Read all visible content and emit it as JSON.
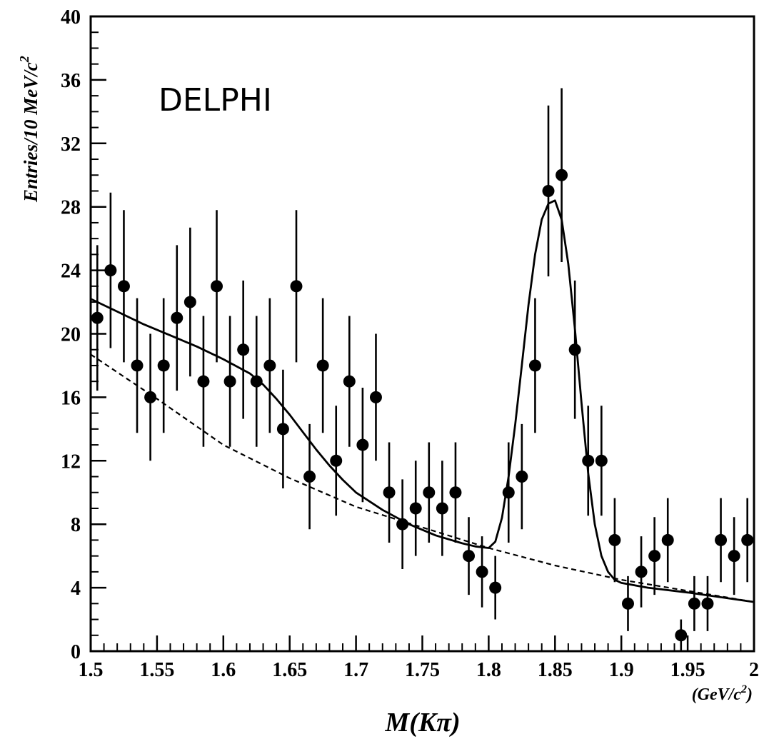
{
  "chart_data": {
    "type": "scatter",
    "experiment_label": "DELPHI",
    "ylabel": {
      "text": "Entries/10 MeV/c",
      "sup": "2"
    },
    "xlabel": {
      "text": "M(Kπ)"
    },
    "x_unit": {
      "prefix": "(GeV/c",
      "sup": "2",
      "suffix": ")"
    },
    "xlim": [
      1.5,
      2.0
    ],
    "ylim": [
      0,
      40
    ],
    "x_ticks": [
      "1.5",
      "1.55",
      "1.6",
      "1.65",
      "1.7",
      "1.75",
      "1.8",
      "1.85",
      "1.9",
      "1.95",
      "2"
    ],
    "y_ticks": [
      "0",
      "4",
      "8",
      "12",
      "16",
      "20",
      "24",
      "28",
      "32",
      "36",
      "40"
    ],
    "points": {
      "x": [
        1.505,
        1.515,
        1.525,
        1.535,
        1.545,
        1.555,
        1.565,
        1.575,
        1.585,
        1.595,
        1.605,
        1.615,
        1.625,
        1.635,
        1.645,
        1.655,
        1.665,
        1.675,
        1.685,
        1.695,
        1.705,
        1.715,
        1.725,
        1.735,
        1.745,
        1.755,
        1.765,
        1.775,
        1.785,
        1.795,
        1.805,
        1.815,
        1.825,
        1.835,
        1.845,
        1.855,
        1.865,
        1.875,
        1.885,
        1.895,
        1.905,
        1.915,
        1.925,
        1.935,
        1.945,
        1.955,
        1.965,
        1.975,
        1.985,
        1.995
      ],
      "y": [
        21,
        24,
        23,
        18,
        16,
        18,
        21,
        22,
        17,
        23,
        17,
        19,
        17,
        18,
        14,
        23,
        11,
        18,
        12,
        17,
        13,
        16,
        10,
        8,
        9,
        10,
        9,
        10,
        6,
        5,
        4,
        10,
        11,
        18,
        29,
        30,
        19,
        12,
        12,
        7,
        3,
        5,
        6,
        7,
        1,
        3,
        3,
        7,
        6,
        7
      ]
    },
    "fit_total": {
      "x": [
        1.5,
        1.52,
        1.54,
        1.56,
        1.58,
        1.6,
        1.62,
        1.63,
        1.64,
        1.65,
        1.66,
        1.67,
        1.68,
        1.69,
        1.7,
        1.72,
        1.74,
        1.76,
        1.78,
        1.79,
        1.8,
        1.805,
        1.81,
        1.815,
        1.82,
        1.825,
        1.83,
        1.835,
        1.84,
        1.845,
        1.85,
        1.855,
        1.86,
        1.865,
        1.87,
        1.875,
        1.88,
        1.885,
        1.89,
        1.895,
        1.9,
        1.92,
        1.95,
        2.0
      ],
      "y": [
        22.2,
        21.4,
        20.6,
        19.9,
        19.2,
        18.4,
        17.5,
        16.8,
        15.9,
        14.9,
        13.8,
        12.7,
        11.7,
        10.8,
        10.0,
        8.9,
        8.0,
        7.3,
        6.8,
        6.6,
        6.5,
        6.9,
        8.4,
        11.0,
        14.3,
        18.0,
        21.8,
        25.0,
        27.2,
        28.2,
        28.4,
        27.2,
        24.4,
        20.3,
        15.6,
        11.2,
        8.0,
        6.0,
        5.0,
        4.5,
        4.3,
        4.0,
        3.7,
        3.1
      ]
    },
    "fit_background": {
      "x": [
        1.5,
        1.55,
        1.6,
        1.65,
        1.7,
        1.75,
        1.8,
        1.85,
        1.9,
        1.95,
        2.0
      ],
      "y": [
        18.7,
        15.9,
        13.0,
        10.9,
        9.1,
        7.8,
        6.5,
        5.4,
        4.5,
        3.8,
        3.1
      ]
    }
  }
}
